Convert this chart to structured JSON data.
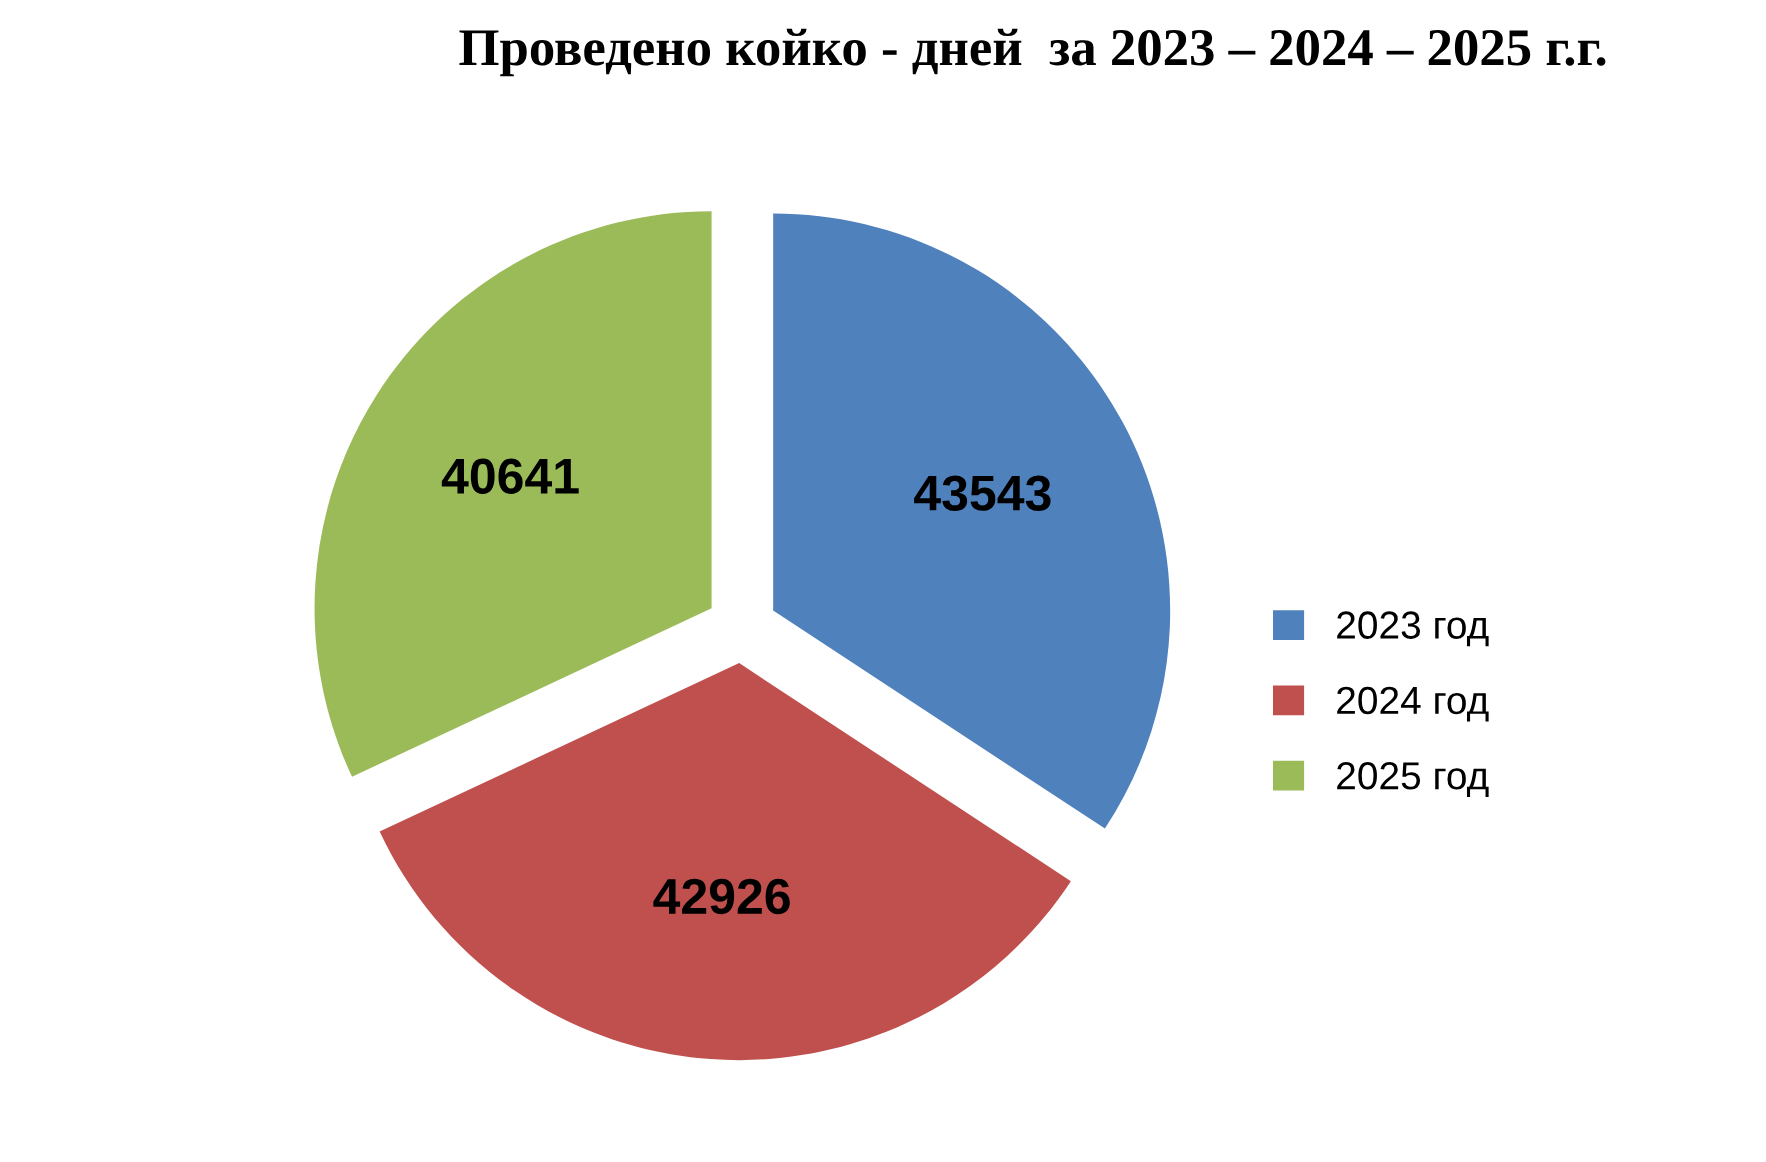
{
  "chart_data": {
    "type": "pie",
    "title": "Проведено койко - дней  за 2023 – 2024 – 2025 г.г.",
    "categories": [
      "2023 год",
      "2024 год",
      "2025 год"
    ],
    "values": [
      43543,
      42926,
      40641
    ],
    "colors": [
      "#4f81bd",
      "#c0504d",
      "#9bbb59"
    ],
    "data_labels": true,
    "legend": "right"
  }
}
